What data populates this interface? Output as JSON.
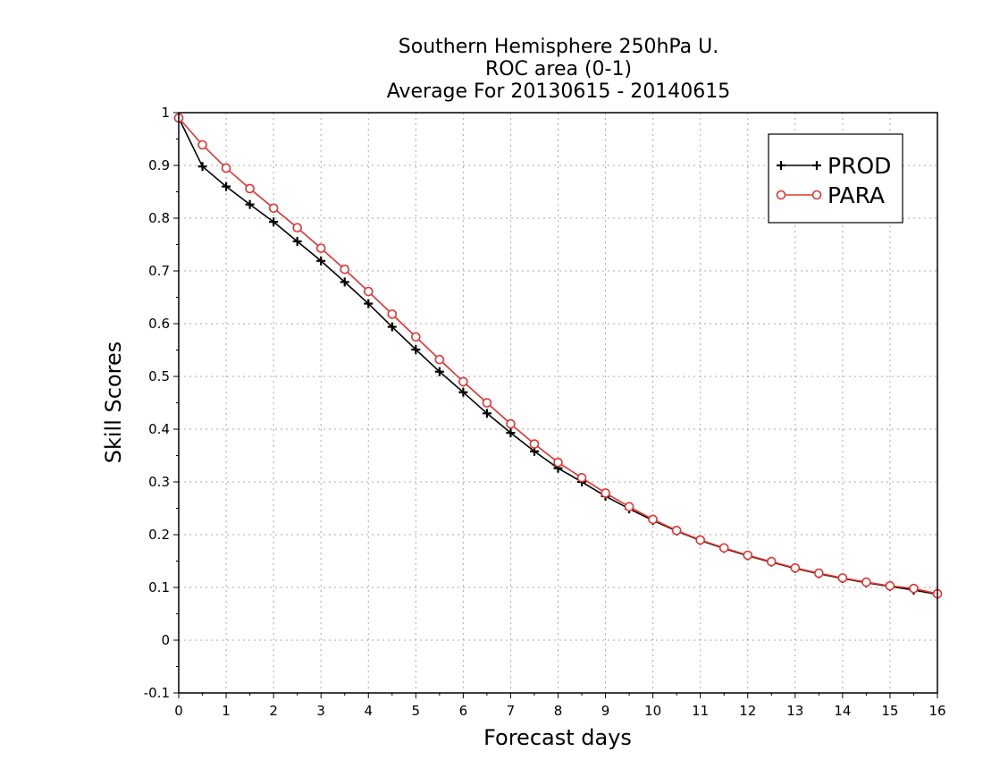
{
  "chart_data": {
    "type": "line",
    "title_lines": [
      "Southern Hemisphere 250hPa U.",
      "ROC area (0-1)",
      "Average For 20130615 - 20140615"
    ],
    "xlabel": "Forecast days",
    "ylabel": "Skill Scores",
    "xlim": [
      0,
      16
    ],
    "ylim": [
      -0.1,
      1
    ],
    "x_ticks": [
      0,
      1,
      2,
      3,
      4,
      5,
      6,
      7,
      8,
      9,
      10,
      11,
      12,
      13,
      14,
      15,
      16
    ],
    "x_tick_labels": [
      "0",
      "1",
      "2",
      "3",
      "4",
      "5",
      "6",
      "7",
      "8",
      "9",
      "10",
      "11",
      "12",
      "13",
      "14",
      "15",
      "16"
    ],
    "y_ticks": [
      -0.1,
      0,
      0.1,
      0.2,
      0.3,
      0.4,
      0.5,
      0.6,
      0.7,
      0.8,
      0.9,
      1
    ],
    "y_tick_labels": [
      "-0.1",
      "0",
      "0.1",
      "0.2",
      "0.3",
      "0.4",
      "0.5",
      "0.6",
      "0.7",
      "0.8",
      "0.9",
      "1"
    ],
    "grid": true,
    "legend_position": "top-right",
    "x": [
      0,
      0.5,
      1,
      1.5,
      2,
      2.5,
      3,
      3.5,
      4,
      4.5,
      5,
      5.5,
      6,
      6.5,
      7,
      7.5,
      8,
      8.5,
      9,
      9.5,
      10,
      10.5,
      11,
      11.5,
      12,
      12.5,
      13,
      13.5,
      14,
      14.5,
      15,
      15.5,
      16
    ],
    "series": [
      {
        "name": "PROD",
        "color": "#000000",
        "marker": "plus",
        "values": [
          0.99,
          0.898,
          0.86,
          0.826,
          0.793,
          0.756,
          0.719,
          0.679,
          0.638,
          0.594,
          0.551,
          0.509,
          0.47,
          0.43,
          0.393,
          0.358,
          0.326,
          0.3,
          0.273,
          0.249,
          0.227,
          0.207,
          0.189,
          0.174,
          0.16,
          0.148,
          0.136,
          0.126,
          0.117,
          0.109,
          0.102,
          0.095,
          0.087
        ]
      },
      {
        "name": "PARA",
        "color": "#e8322f",
        "marker": "circle",
        "values": [
          0.99,
          0.939,
          0.895,
          0.856,
          0.819,
          0.782,
          0.743,
          0.703,
          0.661,
          0.618,
          0.575,
          0.532,
          0.49,
          0.45,
          0.41,
          0.372,
          0.337,
          0.308,
          0.279,
          0.253,
          0.229,
          0.208,
          0.19,
          0.175,
          0.161,
          0.149,
          0.137,
          0.127,
          0.118,
          0.11,
          0.103,
          0.098,
          0.088
        ]
      }
    ]
  }
}
